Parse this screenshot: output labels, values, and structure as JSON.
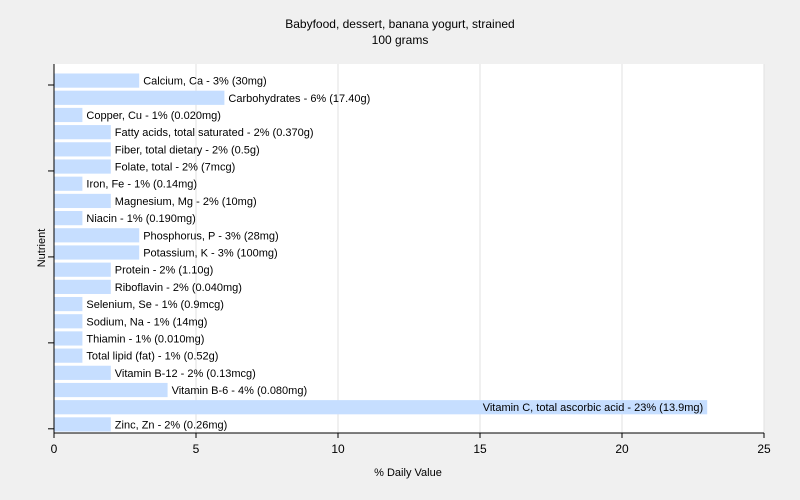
{
  "chart_data": {
    "type": "bar",
    "orientation": "horizontal",
    "title": "Babyfood, dessert, banana yogurt, strained",
    "subtitle": "100 grams",
    "xlabel": "% Daily Value",
    "ylabel": "Nutrient",
    "xlim": [
      0,
      25
    ],
    "xticks": [
      0,
      5,
      10,
      15,
      20,
      25
    ],
    "grid": true,
    "bar_color": "#c6deff",
    "categories": [
      "Calcium, Ca",
      "Carbohydrates",
      "Copper, Cu",
      "Fatty acids, total saturated",
      "Fiber, total dietary",
      "Folate, total",
      "Iron, Fe",
      "Magnesium, Mg",
      "Niacin",
      "Phosphorus, P",
      "Potassium, K",
      "Protein",
      "Riboflavin",
      "Selenium, Se",
      "Sodium, Na",
      "Thiamin",
      "Total lipid (fat)",
      "Vitamin B-12",
      "Vitamin B-6",
      "Vitamin C, total ascorbic acid",
      "Zinc, Zn"
    ],
    "values": [
      3,
      6,
      1,
      2,
      2,
      2,
      1,
      2,
      1,
      3,
      3,
      2,
      2,
      1,
      1,
      1,
      1,
      2,
      4,
      23,
      2
    ],
    "labels": [
      "Calcium, Ca - 3% (30mg)",
      "Carbohydrates - 6% (17.40g)",
      "Copper, Cu - 1% (0.020mg)",
      "Fatty acids, total saturated - 2% (0.370g)",
      "Fiber, total dietary - 2% (0.5g)",
      "Folate, total - 2% (7mcg)",
      "Iron, Fe - 1% (0.14mg)",
      "Magnesium, Mg - 2% (10mg)",
      "Niacin - 1% (0.190mg)",
      "Phosphorus, P - 3% (28mg)",
      "Potassium, K - 3% (100mg)",
      "Protein - 2% (1.10g)",
      "Riboflavin - 2% (0.040mg)",
      "Selenium, Se - 1% (0.9mcg)",
      "Sodium, Na - 1% (14mg)",
      "Thiamin - 1% (0.010mg)",
      "Total lipid (fat) - 1% (0.52g)",
      "Vitamin B-12 - 2% (0.13mcg)",
      "Vitamin B-6 - 4% (0.080mg)",
      "Vitamin C, total ascorbic acid - 23% (13.9mg)",
      "Zinc, Zn - 2% (0.26mg)"
    ]
  }
}
